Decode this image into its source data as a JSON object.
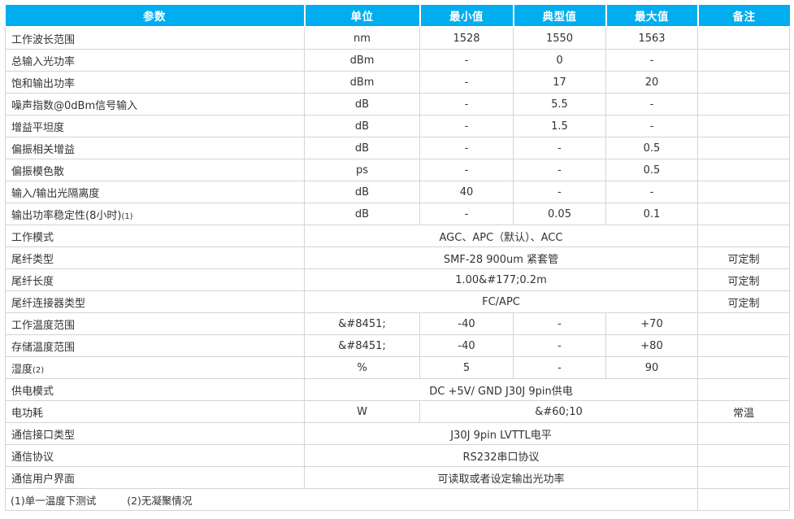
{
  "colors": {
    "header_bg": "#00aeef",
    "header_text": "#ffffff",
    "body_text": "#333333",
    "grid_line": "#d4d4d4"
  },
  "table": {
    "columns": [
      "参数",
      "单位",
      "最小值",
      "典型值",
      "最大值",
      "备注"
    ],
    "rows": [
      {
        "cells": [
          {
            "t": "工作波长范围"
          },
          {
            "t": "nm"
          },
          {
            "t": "1528"
          },
          {
            "t": "1550"
          },
          {
            "t": "1563"
          },
          {
            "t": ""
          }
        ]
      },
      {
        "cells": [
          {
            "t": "总输入光功率"
          },
          {
            "t": "dBm"
          },
          {
            "t": "-"
          },
          {
            "t": "0"
          },
          {
            "t": "-"
          },
          {
            "t": ""
          }
        ]
      },
      {
        "cells": [
          {
            "t": "饱和输出功率"
          },
          {
            "t": "dBm"
          },
          {
            "t": "-"
          },
          {
            "t": "17"
          },
          {
            "t": "20"
          },
          {
            "t": ""
          }
        ]
      },
      {
        "cells": [
          {
            "t": "噪声指数@0dBm信号输入"
          },
          {
            "t": "dB"
          },
          {
            "t": "-"
          },
          {
            "t": "5.5"
          },
          {
            "t": "-"
          },
          {
            "t": ""
          }
        ]
      },
      {
        "cells": [
          {
            "t": "增益平坦度"
          },
          {
            "t": "dB"
          },
          {
            "t": "-"
          },
          {
            "t": "1.5"
          },
          {
            "t": "-"
          },
          {
            "t": ""
          }
        ]
      },
      {
        "cells": [
          {
            "t": "偏振相关增益"
          },
          {
            "t": "dB"
          },
          {
            "t": "-"
          },
          {
            "t": "-"
          },
          {
            "t": "0.5"
          },
          {
            "t": ""
          }
        ]
      },
      {
        "cells": [
          {
            "t": "偏振模色散"
          },
          {
            "t": "ps"
          },
          {
            "t": "-"
          },
          {
            "t": "-"
          },
          {
            "t": "0.5"
          },
          {
            "t": ""
          }
        ]
      },
      {
        "cells": [
          {
            "t": "输入/输出光隔离度"
          },
          {
            "t": "dB"
          },
          {
            "t": "40"
          },
          {
            "t": "-"
          },
          {
            "t": "-"
          },
          {
            "t": ""
          }
        ]
      },
      {
        "cells": [
          {
            "t": "输出功率稳定性(8小时)",
            "sup": "(1)"
          },
          {
            "t": "dB"
          },
          {
            "t": "-"
          },
          {
            "t": "0.05"
          },
          {
            "t": "0.1"
          },
          {
            "t": ""
          }
        ]
      },
      {
        "cells": [
          {
            "t": "工作模式"
          },
          {
            "t": "AGC、APC（默认）、ACC",
            "colspan": 4
          },
          {
            "t": ""
          }
        ]
      },
      {
        "cells": [
          {
            "t": "尾纤类型"
          },
          {
            "t": "SMF-28 900um 紧套管",
            "colspan": 4
          },
          {
            "t": "可定制"
          }
        ]
      },
      {
        "cells": [
          {
            "t": "尾纤长度"
          },
          {
            "t": "1.00&#177;0.2m",
            "colspan": 4
          },
          {
            "t": "可定制"
          }
        ]
      },
      {
        "cells": [
          {
            "t": "尾纤连接器类型"
          },
          {
            "t": "FC/APC",
            "colspan": 4
          },
          {
            "t": "可定制"
          }
        ]
      },
      {
        "cells": [
          {
            "t": "工作温度范围"
          },
          {
            "t": "&#8451;"
          },
          {
            "t": "-40"
          },
          {
            "t": "-"
          },
          {
            "t": "+70"
          },
          {
            "t": ""
          }
        ]
      },
      {
        "cells": [
          {
            "t": "存储温度范围"
          },
          {
            "t": "&#8451;"
          },
          {
            "t": "-40"
          },
          {
            "t": "-"
          },
          {
            "t": "+80"
          },
          {
            "t": ""
          }
        ]
      },
      {
        "cells": [
          {
            "t": "湿度",
            "sup": "(2)"
          },
          {
            "t": "%"
          },
          {
            "t": "5"
          },
          {
            "t": "-"
          },
          {
            "t": "90"
          },
          {
            "t": ""
          }
        ]
      },
      {
        "cells": [
          {
            "t": "供电模式"
          },
          {
            "t": "DC +5V/ GND J30J 9pin供电",
            "colspan": 4
          },
          {
            "t": ""
          }
        ]
      },
      {
        "cells": [
          {
            "t": "电功耗"
          },
          {
            "t": "W"
          },
          {
            "t": "&#60;10",
            "colspan": 3
          },
          {
            "t": "常温"
          }
        ]
      },
      {
        "cells": [
          {
            "t": "通信接口类型"
          },
          {
            "t": "J30J 9pin LVTTL电平",
            "colspan": 4
          },
          {
            "t": ""
          }
        ]
      },
      {
        "cells": [
          {
            "t": "通信协议"
          },
          {
            "t": "RS232串口协议",
            "colspan": 4
          },
          {
            "t": ""
          }
        ]
      },
      {
        "cells": [
          {
            "t": "通信用户界面"
          },
          {
            "t": "可读取或者设定输出光功率",
            "colspan": 4
          },
          {
            "t": ""
          }
        ]
      }
    ],
    "footnotes": {
      "note1": "(1)单一温度下测试",
      "note2": "(2)无凝聚情况"
    }
  }
}
